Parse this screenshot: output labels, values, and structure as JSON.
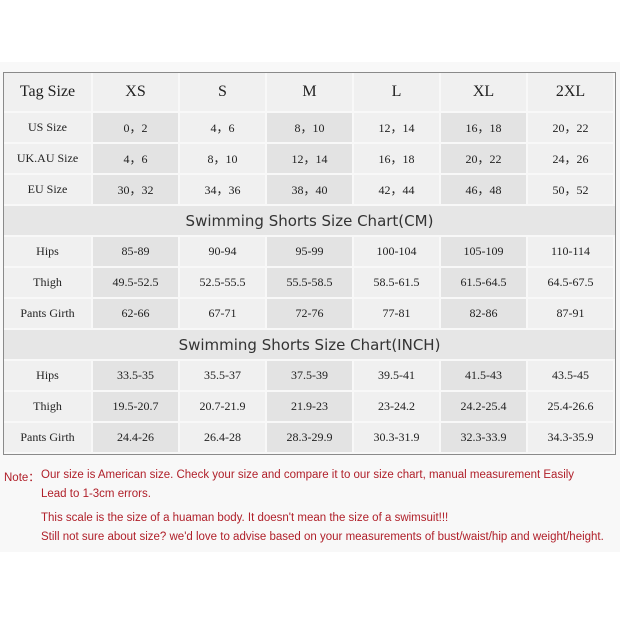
{
  "header": [
    "Tag Size",
    "XS",
    "S",
    "M",
    "L",
    "XL",
    "2XL"
  ],
  "size_rows": [
    {
      "label": "US Size",
      "values": [
        "0，2",
        "4，6",
        "8，10",
        "12，14",
        "16，18",
        "20，22"
      ]
    },
    {
      "label": "UK.AU Size",
      "values": [
        "4，6",
        "8，10",
        "12，14",
        "16，18",
        "20，22",
        "24，26"
      ]
    },
    {
      "label": "EU Size",
      "values": [
        "30，32",
        "34，36",
        "38，40",
        "42，44",
        "46，48",
        "50，52"
      ]
    }
  ],
  "sections": [
    {
      "title": "Swimming Shorts Size Chart(CM)",
      "rows": [
        {
          "label": "Hips",
          "values": [
            "85-89",
            "90-94",
            "95-99",
            "100-104",
            "105-109",
            "110-114"
          ]
        },
        {
          "label": "Thigh",
          "values": [
            "49.5-52.5",
            "52.5-55.5",
            "55.5-58.5",
            "58.5-61.5",
            "61.5-64.5",
            "64.5-67.5"
          ]
        },
        {
          "label": "Pants Girth",
          "values": [
            "62-66",
            "67-71",
            "72-76",
            "77-81",
            "82-86",
            "87-91"
          ]
        }
      ]
    },
    {
      "title": "Swimming Shorts Size Chart(INCH)",
      "rows": [
        {
          "label": "Hips",
          "values": [
            "33.5-35",
            "35.5-37",
            "37.5-39",
            "39.5-41",
            "41.5-43",
            "43.5-45"
          ]
        },
        {
          "label": "Thigh",
          "values": [
            "19.5-20.7",
            "20.7-21.9",
            "21.9-23",
            "23-24.2",
            "24.2-25.4",
            "25.4-26.6"
          ]
        },
        {
          "label": "Pants Girth",
          "values": [
            "24.4-26",
            "26.4-28",
            "28.3-29.9",
            "30.3-31.9",
            "32.3-33.9",
            "34.3-35.9"
          ]
        }
      ]
    }
  ],
  "notes": {
    "prefix": "Note：",
    "line1": "Our size is American size. Check your size and compare it to our size chart, manual measurement Easily",
    "line2": "Lead to 1-3cm errors.",
    "line3": "This scale is the size of a huaman body. It doesn't mean the size of a swimsuit!!!",
    "line4": "Still not sure about size? we'd love to advise based on your measurements of bust/waist/hip and weight/height."
  },
  "colors": {
    "note_text": "#b0202a",
    "border": "#8a8a8a",
    "cell_dark": "#e3e3e3",
    "cell_light": "#f0f0f0"
  }
}
